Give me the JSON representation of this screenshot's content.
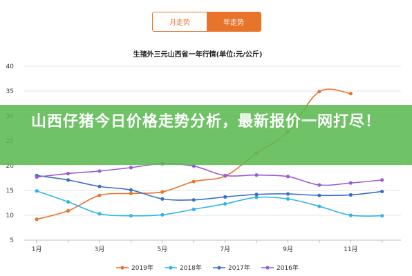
{
  "tabs": [
    {
      "label": "月走势",
      "active": false
    },
    {
      "label": "年走势",
      "active": true
    }
  ],
  "headline": "山西仔猪今日价格走势分析，最新报价一网打尽！",
  "chart_data": {
    "type": "line",
    "title": "生猪外三元山西省一年行情(单位:元/公斤)",
    "xlabel": "",
    "ylabel": "",
    "ylim": [
      5,
      40
    ],
    "yticks": [
      5,
      10,
      15,
      20,
      25,
      30,
      35,
      40
    ],
    "x": [
      1,
      2,
      3,
      4,
      5,
      6,
      7,
      8,
      9,
      10,
      11,
      12
    ],
    "xtick_labels": {
      "1": "1月",
      "3": "3月",
      "5": "5月",
      "7": "7月",
      "9": "9月",
      "11": "11月"
    },
    "grid": true,
    "legend_position": "bottom",
    "series": [
      {
        "name": "2019年",
        "color": "#e8742c",
        "values": [
          9.2,
          10.9,
          14.0,
          14.4,
          14.7,
          16.8,
          17.9,
          22.5,
          26.8,
          34.9,
          34.5,
          null
        ]
      },
      {
        "name": "2018年",
        "color": "#2db5e8",
        "values": [
          14.9,
          12.7,
          10.3,
          9.9,
          10.1,
          11.2,
          12.3,
          13.6,
          13.3,
          11.8,
          10.0,
          9.9
        ]
      },
      {
        "name": "2017年",
        "color": "#3a6fc4",
        "values": [
          18.0,
          17.1,
          15.8,
          15.1,
          13.3,
          13.1,
          13.7,
          14.2,
          14.3,
          14.0,
          14.1,
          14.8
        ]
      },
      {
        "name": "2016年",
        "color": "#9a5bd6",
        "values": [
          17.7,
          18.4,
          18.9,
          19.6,
          20.4,
          19.9,
          18.0,
          18.1,
          17.8,
          16.1,
          16.5,
          17.1
        ]
      }
    ]
  }
}
